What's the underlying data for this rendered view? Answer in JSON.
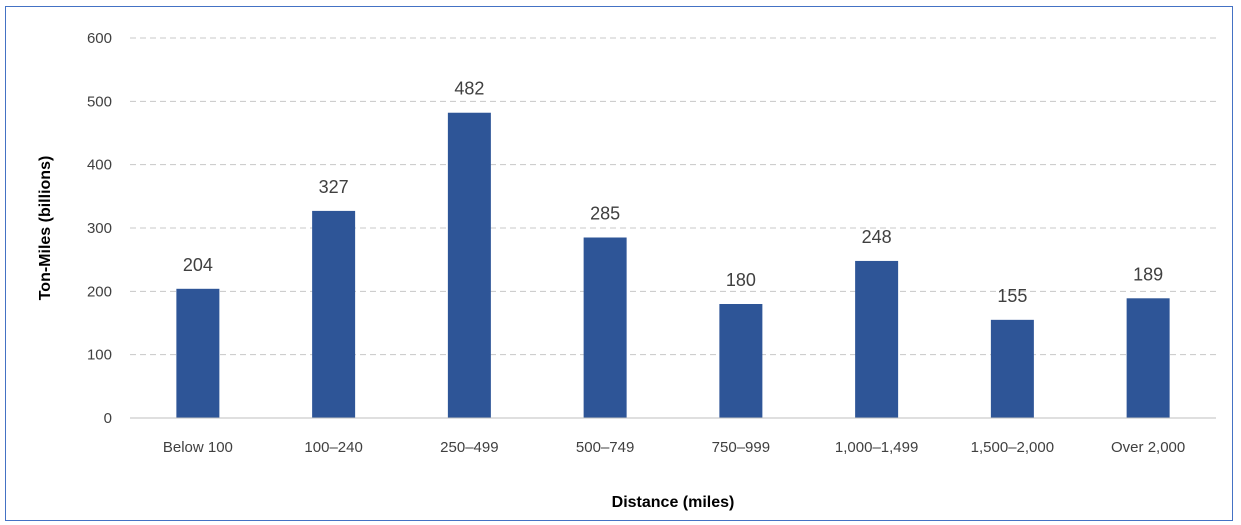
{
  "chart_data": {
    "type": "bar",
    "categories": [
      "Below 100",
      "100–240",
      "250–499",
      "500–749",
      "750–999",
      "1,000–1,499",
      "1,500–2,000",
      "Over 2,000"
    ],
    "values": [
      204,
      327,
      482,
      285,
      180,
      248,
      155,
      189
    ],
    "title": "",
    "xlabel": "Distance (miles)",
    "ylabel": "Ton-Miles (billions)",
    "ylim": [
      0,
      600
    ],
    "yticks": [
      0,
      100,
      200,
      300,
      400,
      500,
      600
    ],
    "grid": true,
    "grid_style": "dashed",
    "legend": "none",
    "bar_color": "#2e5597",
    "data_labels": true
  }
}
